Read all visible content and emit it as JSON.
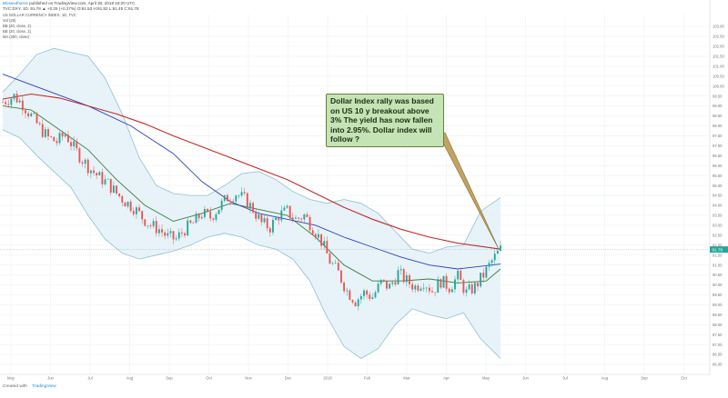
{
  "header": {
    "author": "Blessedharris",
    "published": "published on TradingView.com, April 30, 2018 16:20 UTC",
    "symbol_line": "TVC:DXY, 1D: 91.78 ▲ +0.25 (+0.27%) O:91.53 H:91.82 L:91.45 C:91.78"
  },
  "indicators": [
    "US DOLLAR CURRENCY INDEX, 1D, TVC",
    "Vol (20)",
    "BB (20, close, 2)",
    "BB (20, close, 2)",
    "MA (200, close)"
  ],
  "annotation": {
    "text": "Dollar Index rally was based on US 10 y breakout above 3% The yield has now fallen into 2.95%. Dollar index will follow ?"
  },
  "footer": {
    "created_with": "Created with",
    "brand": "TradingView"
  },
  "colors": {
    "up": "#26a69a",
    "down": "#ef5350",
    "band": "#8fc1d1",
    "band_fill": "#e3f1f7",
    "ma_red": "#c62828",
    "ma_blue": "#2b3fc4",
    "ma_green": "#3c7d3c"
  },
  "chart_data": {
    "type": "candlestick",
    "title": "US DOLLAR CURRENCY INDEX",
    "ylim": [
      85.5,
      103.6
    ],
    "x_ticks": [
      "May",
      "Jun",
      "Jul",
      "Aug",
      "Sep",
      "Oct",
      "Nov",
      "Dec",
      "2018",
      "Feb",
      "Mar",
      "Apr",
      "May",
      "Jun",
      "Jul",
      "Aug",
      "Sep",
      "Oct"
    ],
    "y_ticks": [
      "103.00",
      "102.50",
      "102.00",
      "101.50",
      "101.00",
      "100.50",
      "100.00",
      "99.50",
      "99.00",
      "98.50",
      "98.00",
      "97.50",
      "97.00",
      "96.50",
      "96.00",
      "95.50",
      "95.00",
      "94.50",
      "94.00",
      "93.50",
      "93.00",
      "92.50",
      "92.00",
      "91.50",
      "91.00",
      "90.50",
      "90.00",
      "89.50",
      "89.00",
      "88.50",
      "88.00",
      "87.50",
      "87.00",
      "86.50",
      "86.00"
    ],
    "last_price": {
      "label": "91.78",
      "value": 91.78
    },
    "price_path": [
      [
        0,
        99.2
      ],
      [
        4,
        99.5
      ],
      [
        7,
        99.1
      ],
      [
        10,
        98.5
      ],
      [
        13,
        97.9
      ],
      [
        16,
        97.4
      ],
      [
        19,
        97.2
      ],
      [
        22,
        97.6
      ],
      [
        25,
        96.9
      ],
      [
        28,
        96.3
      ],
      [
        31,
        95.8
      ],
      [
        34,
        95.4
      ],
      [
        37,
        95.1
      ],
      [
        40,
        94.6
      ],
      [
        43,
        94.2
      ],
      [
        46,
        93.9
      ],
      [
        49,
        93.4
      ],
      [
        52,
        93.0
      ],
      [
        55,
        92.8
      ],
      [
        58,
        92.4
      ],
      [
        61,
        92.3
      ],
      [
        64,
        92.8
      ],
      [
        67,
        93.1
      ],
      [
        70,
        93.6
      ],
      [
        73,
        93.4
      ],
      [
        76,
        93.9
      ],
      [
        79,
        94.4
      ],
      [
        82,
        94.6
      ],
      [
        85,
        94.3
      ],
      [
        88,
        93.8
      ],
      [
        91,
        93.1
      ],
      [
        94,
        92.9
      ],
      [
        97,
        93.5
      ],
      [
        100,
        93.7
      ],
      [
        103,
        93.3
      ],
      [
        106,
        93.5
      ],
      [
        109,
        92.9
      ],
      [
        112,
        92.2
      ],
      [
        115,
        91.2
      ],
      [
        118,
        90.6
      ],
      [
        121,
        89.7
      ],
      [
        124,
        89.2
      ],
      [
        127,
        89.6
      ],
      [
        130,
        89.4
      ],
      [
        133,
        90.1
      ],
      [
        136,
        89.9
      ],
      [
        139,
        90.6
      ],
      [
        142,
        90.2
      ],
      [
        145,
        89.9
      ],
      [
        148,
        90.2
      ],
      [
        151,
        89.7
      ],
      [
        154,
        90.2
      ],
      [
        157,
        89.9
      ],
      [
        160,
        90.4
      ],
      [
        163,
        89.6
      ],
      [
        166,
        89.9
      ],
      [
        169,
        90.5
      ],
      [
        172,
        91.2
      ],
      [
        175,
        91.78
      ]
    ],
    "ma_red": [
      [
        0,
        99.35
      ],
      [
        10,
        99.6
      ],
      [
        20,
        99.4
      ],
      [
        30,
        99.0
      ],
      [
        40,
        98.6
      ],
      [
        50,
        98.1
      ],
      [
        60,
        97.5
      ],
      [
        70,
        96.95
      ],
      [
        80,
        96.4
      ],
      [
        90,
        95.85
      ],
      [
        100,
        95.3
      ],
      [
        110,
        94.6
      ],
      [
        120,
        93.9
      ],
      [
        130,
        93.3
      ],
      [
        140,
        92.8
      ],
      [
        150,
        92.4
      ],
      [
        160,
        92.1
      ],
      [
        175,
        91.8
      ]
    ],
    "ma_blue": [
      [
        0,
        100.6
      ],
      [
        15,
        99.8
      ],
      [
        30,
        99.0
      ],
      [
        45,
        98.0
      ],
      [
        60,
        96.6
      ],
      [
        70,
        95.2
      ],
      [
        80,
        94.2
      ],
      [
        90,
        93.6
      ],
      [
        100,
        93.3
      ],
      [
        110,
        93.0
      ],
      [
        120,
        92.4
      ],
      [
        130,
        91.9
      ],
      [
        140,
        91.4
      ],
      [
        150,
        91.0
      ],
      [
        160,
        90.8
      ],
      [
        175,
        91.05
      ]
    ],
    "ma_green": [
      [
        0,
        99.0
      ],
      [
        10,
        98.8
      ],
      [
        20,
        97.8
      ],
      [
        30,
        96.8
      ],
      [
        40,
        95.3
      ],
      [
        50,
        94.0
      ],
      [
        60,
        93.2
      ],
      [
        70,
        93.6
      ],
      [
        80,
        94.1
      ],
      [
        90,
        93.8
      ],
      [
        100,
        93.5
      ],
      [
        110,
        92.4
      ],
      [
        120,
        91.0
      ],
      [
        130,
        90.2
      ],
      [
        140,
        90.2
      ],
      [
        150,
        90.3
      ],
      [
        160,
        90.1
      ],
      [
        170,
        90.2
      ],
      [
        175,
        90.8
      ]
    ],
    "bb_upper": [
      [
        0,
        99.7
      ],
      [
        6,
        100.6
      ],
      [
        12,
        101.6
      ],
      [
        18,
        101.9
      ],
      [
        24,
        101.7
      ],
      [
        30,
        101.5
      ],
      [
        36,
        100.4
      ],
      [
        42,
        98.6
      ],
      [
        48,
        96.4
      ],
      [
        54,
        95.0
      ],
      [
        60,
        94.6
      ],
      [
        66,
        94.5
      ],
      [
        72,
        94.5
      ],
      [
        78,
        95.0
      ],
      [
        84,
        95.6
      ],
      [
        90,
        95.7
      ],
      [
        96,
        95.3
      ],
      [
        102,
        94.7
      ],
      [
        108,
        94.3
      ],
      [
        114,
        94.1
      ],
      [
        120,
        94.3
      ],
      [
        126,
        94.1
      ],
      [
        132,
        93.6
      ],
      [
        138,
        92.7
      ],
      [
        144,
        91.8
      ],
      [
        150,
        91.6
      ],
      [
        156,
        91.9
      ],
      [
        162,
        92.0
      ],
      [
        168,
        93.7
      ],
      [
        175,
        94.4
      ]
    ],
    "bb_lower": [
      [
        0,
        97.8
      ],
      [
        6,
        97.4
      ],
      [
        12,
        96.5
      ],
      [
        18,
        95.7
      ],
      [
        24,
        94.9
      ],
      [
        30,
        93.5
      ],
      [
        36,
        92.3
      ],
      [
        42,
        91.6
      ],
      [
        48,
        91.3
      ],
      [
        54,
        91.5
      ],
      [
        60,
        91.7
      ],
      [
        66,
        92.0
      ],
      [
        72,
        92.4
      ],
      [
        78,
        92.6
      ],
      [
        84,
        92.4
      ],
      [
        90,
        92.0
      ],
      [
        96,
        91.8
      ],
      [
        102,
        91.3
      ],
      [
        108,
        90.2
      ],
      [
        114,
        88.4
      ],
      [
        120,
        86.9
      ],
      [
        126,
        86.3
      ],
      [
        132,
        86.8
      ],
      [
        138,
        88.0
      ],
      [
        144,
        88.8
      ],
      [
        150,
        88.5
      ],
      [
        156,
        88.3
      ],
      [
        162,
        88.6
      ],
      [
        168,
        87.3
      ],
      [
        175,
        86.3
      ]
    ]
  }
}
